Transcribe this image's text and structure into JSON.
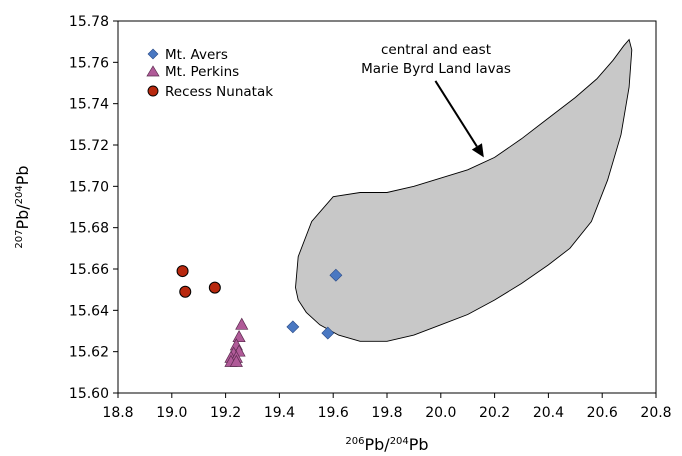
{
  "chart_data": {
    "type": "scatter",
    "xlabel": {
      "sup1": "206",
      "base1": "Pb/",
      "sup2": "204",
      "base2": "Pb"
    },
    "ylabel": {
      "sup1": "207",
      "base1": "Pb/",
      "sup2": "204",
      "base2": "Pb"
    },
    "xlim": [
      18.8,
      20.8
    ],
    "ylim": [
      15.6,
      15.78
    ],
    "x_ticks": [
      "18.8",
      "19.0",
      "19.2",
      "19.4",
      "19.6",
      "19.8",
      "20.0",
      "20.2",
      "20.4",
      "20.6",
      "20.8"
    ],
    "y_ticks": [
      "15.60",
      "15.62",
      "15.64",
      "15.66",
      "15.68",
      "15.70",
      "15.72",
      "15.74",
      "15.76",
      "15.78"
    ],
    "grid": false,
    "legend_position": "top-left",
    "series": [
      {
        "name": "Mt. Avers",
        "marker": "diamond",
        "color": "#4a78c2",
        "points": [
          {
            "x": 19.61,
            "y": 15.657
          },
          {
            "x": 19.45,
            "y": 15.632
          },
          {
            "x": 19.58,
            "y": 15.629
          }
        ]
      },
      {
        "name": "Mt. Perkins",
        "marker": "triangle",
        "color": "#b05a98",
        "points": [
          {
            "x": 19.26,
            "y": 15.633
          },
          {
            "x": 19.25,
            "y": 15.627
          },
          {
            "x": 19.24,
            "y": 15.623
          },
          {
            "x": 19.25,
            "y": 15.62
          },
          {
            "x": 19.23,
            "y": 15.619
          },
          {
            "x": 19.22,
            "y": 15.617
          },
          {
            "x": 19.24,
            "y": 15.617
          },
          {
            "x": 19.22,
            "y": 15.615
          },
          {
            "x": 19.24,
            "y": 15.615
          }
        ]
      },
      {
        "name": "Recess Nunatak",
        "marker": "circle",
        "color": "#b8280e",
        "points": [
          {
            "x": 19.04,
            "y": 15.659
          },
          {
            "x": 19.05,
            "y": 15.649
          },
          {
            "x": 19.16,
            "y": 15.651
          }
        ]
      }
    ],
    "field": {
      "fill": "#c8c8c8",
      "outline": [
        [
          19.46,
          15.651
        ],
        [
          19.47,
          15.666
        ],
        [
          19.52,
          15.683
        ],
        [
          19.6,
          15.695
        ],
        [
          19.7,
          15.697
        ],
        [
          19.8,
          15.697
        ],
        [
          19.9,
          15.7
        ],
        [
          20.0,
          15.704
        ],
        [
          20.1,
          15.708
        ],
        [
          20.2,
          15.714
        ],
        [
          20.3,
          15.723
        ],
        [
          20.4,
          15.733
        ],
        [
          20.5,
          15.743
        ],
        [
          20.58,
          15.752
        ],
        [
          20.64,
          15.761
        ],
        [
          20.68,
          15.768
        ],
        [
          20.7,
          15.771
        ],
        [
          20.71,
          15.766
        ],
        [
          20.7,
          15.748
        ],
        [
          20.67,
          15.725
        ],
        [
          20.62,
          15.703
        ],
        [
          20.56,
          15.683
        ],
        [
          20.48,
          15.67
        ],
        [
          20.4,
          15.662
        ],
        [
          20.3,
          15.653
        ],
        [
          20.2,
          15.645
        ],
        [
          20.1,
          15.638
        ],
        [
          20.0,
          15.633
        ],
        [
          19.9,
          15.628
        ],
        [
          19.8,
          15.625
        ],
        [
          19.7,
          15.625
        ],
        [
          19.62,
          15.628
        ],
        [
          19.55,
          15.633
        ],
        [
          19.5,
          15.639
        ],
        [
          19.47,
          15.645
        ]
      ]
    },
    "annotation": {
      "line1": "central and east",
      "line2": "Marie Byrd Land lavas",
      "arrow_from": [
        19.98,
        15.751
      ],
      "arrow_to": [
        20.16,
        15.714
      ]
    }
  }
}
